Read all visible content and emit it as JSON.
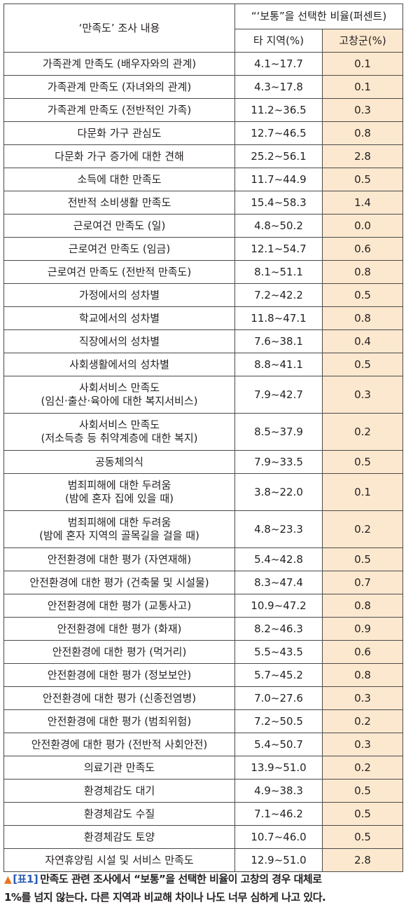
{
  "table": {
    "header_item": "‘만족도’ 조사 내용",
    "header_group": "“‘보통”을 선택한 비율(퍼센트)",
    "header_other": "타 지역(%)",
    "header_gochang": "고창군(%)",
    "rows": [
      {
        "item": [
          "가족관계 만족도 (배우자와의 관계)"
        ],
        "other": "4.1~17.7",
        "gochang": "0.1"
      },
      {
        "item": [
          "가족관계 만족도 (자녀와의 관계)"
        ],
        "other": "4.3~17.8",
        "gochang": "0.1"
      },
      {
        "item": [
          "가족관계 만족도 (전반적인 가족)"
        ],
        "other": "11.2~36.5",
        "gochang": "0.3"
      },
      {
        "item": [
          "다문화 가구 관심도"
        ],
        "other": "12.7~46.5",
        "gochang": "0.8"
      },
      {
        "item": [
          "다문화 가구 증가에 대한 견해"
        ],
        "other": "25.2~56.1",
        "gochang": "2.8"
      },
      {
        "item": [
          "소득에 대한 만족도"
        ],
        "other": "11.7~44.9",
        "gochang": "0.5"
      },
      {
        "item": [
          "전반적 소비생활 만족도"
        ],
        "other": "15.4~58.3",
        "gochang": "1.4"
      },
      {
        "item": [
          "근로여건 만족도 (일)"
        ],
        "other": "4.8~50.2",
        "gochang": "0.0"
      },
      {
        "item": [
          "근로여건 만족도 (임금)"
        ],
        "other": "12.1~54.7",
        "gochang": "0.6"
      },
      {
        "item": [
          "근로여건 만족도 (전반적 만족도)"
        ],
        "other": "8.1~51.1",
        "gochang": "0.8"
      },
      {
        "item": [
          "가정에서의 성차별"
        ],
        "other": "7.2~42.2",
        "gochang": "0.5"
      },
      {
        "item": [
          "학교에서의 성차별"
        ],
        "other": "11.8~47.1",
        "gochang": "0.8"
      },
      {
        "item": [
          "직장에서의 성차별"
        ],
        "other": "7.6~38.1",
        "gochang": "0.4"
      },
      {
        "item": [
          "사회생활에서의 성차별"
        ],
        "other": "8.8~41.1",
        "gochang": "0.5"
      },
      {
        "item": [
          "사회서비스 만족도",
          "(임신·출산·육아에 대한 복지서비스)"
        ],
        "other": "7.9~42.7",
        "gochang": "0.3"
      },
      {
        "item": [
          "사회서비스 만족도",
          "(저소득층 등 취약계층에 대한 복지)"
        ],
        "other": "8.5~37.9",
        "gochang": "0.2"
      },
      {
        "item": [
          "공동체의식"
        ],
        "other": "7.9~33.5",
        "gochang": "0.5"
      },
      {
        "item": [
          "범죄피해에 대한 두려움",
          "(밤에 혼자 집에 있을 때)"
        ],
        "other": "3.8~22.0",
        "gochang": "0.1"
      },
      {
        "item": [
          "범죄피해에 대한 두려움",
          "(밤에 혼자 지역의 골목길을 걸을 때)"
        ],
        "other": "4.8~23.3",
        "gochang": "0.2"
      },
      {
        "item": [
          "안전환경에 대한 평가 (자연재해)"
        ],
        "other": "5.4~42.8",
        "gochang": "0.5"
      },
      {
        "item": [
          "안전환경에 대한 평가 (건축물 및 시설물)"
        ],
        "other": "8.3~47.4",
        "gochang": "0.7"
      },
      {
        "item": [
          "안전환경에 대한 평가 (교통사고)"
        ],
        "other": "10.9~47.2",
        "gochang": "0.8"
      },
      {
        "item": [
          "안전환경에 대한 평가 (화재)"
        ],
        "other": "8.2~46.3",
        "gochang": "0.9"
      },
      {
        "item": [
          "안전환경에 대한 평가 (먹거리)"
        ],
        "other": "5.5~43.5",
        "gochang": "0.6"
      },
      {
        "item": [
          "안전환경에 대한 평가 (정보보안)"
        ],
        "other": "5.7~45.2",
        "gochang": "0.8"
      },
      {
        "item": [
          "안전환경에 대한 평가 (신종전염병)"
        ],
        "other": "7.0~27.6",
        "gochang": "0.3"
      },
      {
        "item": [
          "안전환경에 대한 평가 (범죄위험)"
        ],
        "other": "7.2~50.5",
        "gochang": "0.2"
      },
      {
        "item": [
          "안전환경에 대한 평가 (전반적 사회안전)"
        ],
        "other": "5.4~50.7",
        "gochang": "0.3"
      },
      {
        "item": [
          "의료기관 만족도"
        ],
        "other": "13.9~51.0",
        "gochang": "0.2"
      },
      {
        "item": [
          "환경체감도 대기"
        ],
        "other": "4.9~38.3",
        "gochang": "0.5"
      },
      {
        "item": [
          "환경체감도 수질"
        ],
        "other": "7.1~46.2",
        "gochang": "0.5"
      },
      {
        "item": [
          "환경체감도 토양"
        ],
        "other": "10.7~46.0",
        "gochang": "0.5"
      },
      {
        "item": [
          "자연휴양림 시설 및 서비스 만족도"
        ],
        "other": "12.9~51.0",
        "gochang": "2.8"
      }
    ]
  },
  "caption": {
    "marker": "▲",
    "tag": "[표1]",
    "line1": "만족도 관련 조사에서 “보통”을 선택한 비율이 고창의 경우  대체로",
    "line2": "1%를 넘지 않는다. 다른 지역과 비교해 차이나 나도 너무 심하게 나고 있다."
  },
  "colors": {
    "gochang_column": "#fce8cf",
    "tag": "#2a5db0",
    "marker": "#e8731a"
  }
}
